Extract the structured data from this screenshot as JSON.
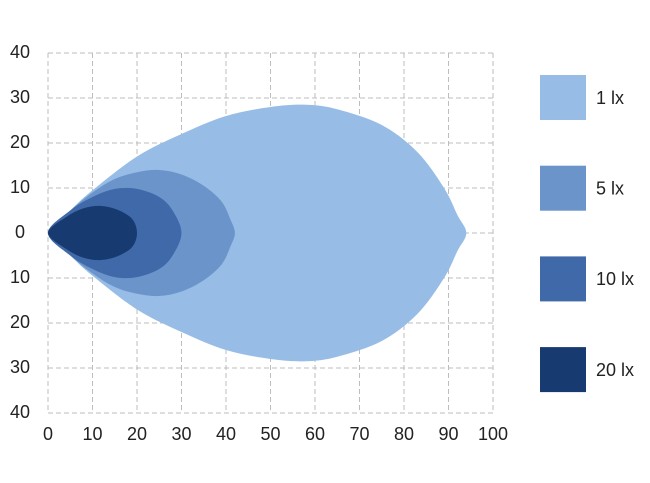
{
  "chart_data": {
    "type": "contour",
    "xlim": [
      0,
      100
    ],
    "xticks": [
      0,
      10,
      20,
      30,
      40,
      50,
      60,
      70,
      80,
      90,
      100
    ],
    "ylim": [
      -40,
      40
    ],
    "yticks": [
      {
        "value": 40,
        "label": "40"
      },
      {
        "value": 30,
        "label": "30"
      },
      {
        "value": 20,
        "label": "20"
      },
      {
        "value": 10,
        "label": "10"
      },
      {
        "value": 0,
        "label": "0"
      },
      {
        "value": -10,
        "label": "10"
      },
      {
        "value": -20,
        "label": "20"
      },
      {
        "value": -30,
        "label": "30"
      },
      {
        "value": -40,
        "label": "40"
      }
    ],
    "grid": true,
    "legend": "right",
    "series": [
      {
        "name": "1 lx",
        "color": "#97bde6",
        "x": [
          0,
          5,
          10,
          20,
          30,
          40,
          50,
          58,
          65,
          75,
          83,
          89,
          92,
          94,
          92,
          89,
          83,
          75,
          65,
          58,
          50,
          40,
          30,
          20,
          10,
          5
        ],
        "y": [
          0,
          5,
          9.5,
          17,
          22,
          26,
          28,
          28.5,
          27.5,
          24,
          18,
          10,
          4,
          0,
          -4,
          -10,
          -18,
          -24,
          -27.5,
          -28.5,
          -28,
          -26,
          -22,
          -17,
          -9.5,
          -5
        ]
      },
      {
        "name": "5 lx",
        "color": "#6b95ca",
        "x": [
          0,
          5,
          10,
          15,
          20,
          25,
          30,
          35,
          39,
          41,
          42,
          41,
          39,
          35,
          30,
          25,
          20,
          15,
          10,
          5
        ],
        "y": [
          0,
          5,
          9,
          12,
          13.5,
          14,
          13,
          10.5,
          7,
          3,
          0,
          -3,
          -7,
          -10.5,
          -13,
          -14,
          -13.5,
          -12,
          -9,
          -5
        ]
      },
      {
        "name": "10 lx",
        "color": "#3f69a8",
        "x": [
          0,
          5,
          10,
          15,
          20,
          25,
          28,
          30,
          28,
          25,
          20,
          15,
          10,
          5
        ],
        "y": [
          0,
          5,
          8,
          9.8,
          9.8,
          8,
          5,
          0,
          -5,
          -8,
          -9.8,
          -9.8,
          -8,
          -5
        ]
      },
      {
        "name": "20 lx",
        "color": "#173b70",
        "x": [
          0,
          4,
          8,
          12,
          16,
          19,
          20,
          19,
          16,
          12,
          8,
          4
        ],
        "y": [
          0,
          3.5,
          5.5,
          6,
          5,
          3,
          0,
          -3,
          -5,
          -6,
          -5.5,
          -3.5
        ]
      }
    ]
  }
}
